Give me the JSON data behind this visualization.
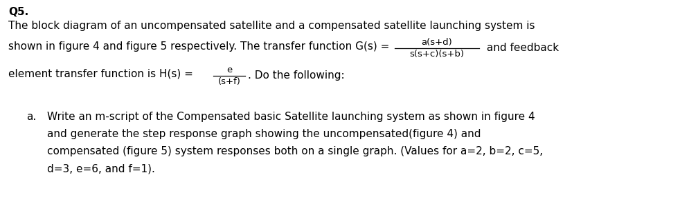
{
  "background_color": "#ffffff",
  "figsize": [
    10.08,
    2.96
  ],
  "dpi": 100,
  "title_bold": "Q5.",
  "line1": "The block diagram of an uncompensated satellite and a compensated satellite launching system is",
  "line2_prefix": "shown in figure 4 and figure 5 respectively. The transfer function G(s) = ",
  "line2_num": "a(s+d)",
  "line2_den": "s(s+c)(s+b)",
  "line2_suffix": " and feedback",
  "line3_prefix": "element transfer function is H(s) = ",
  "line3_num": "e",
  "line3_den": "(s+f)",
  "line3_suffix": ". Do the following:",
  "item_a_label": "a.",
  "item_a_line1": "Write an m-script of the Compensated basic Satellite launching system as shown in figure 4",
  "item_a_line2": "and generate the step response graph showing the uncompensated(figure 4) and",
  "item_a_line3": "compensated (figure 5) system responses both on a single graph. (Values for a=2, b=2, c=5,",
  "item_a_line4": "d=3, e=6, and f=1).",
  "font_size": 11.0,
  "font_family": "DejaVu Sans",
  "text_color": "#000000"
}
